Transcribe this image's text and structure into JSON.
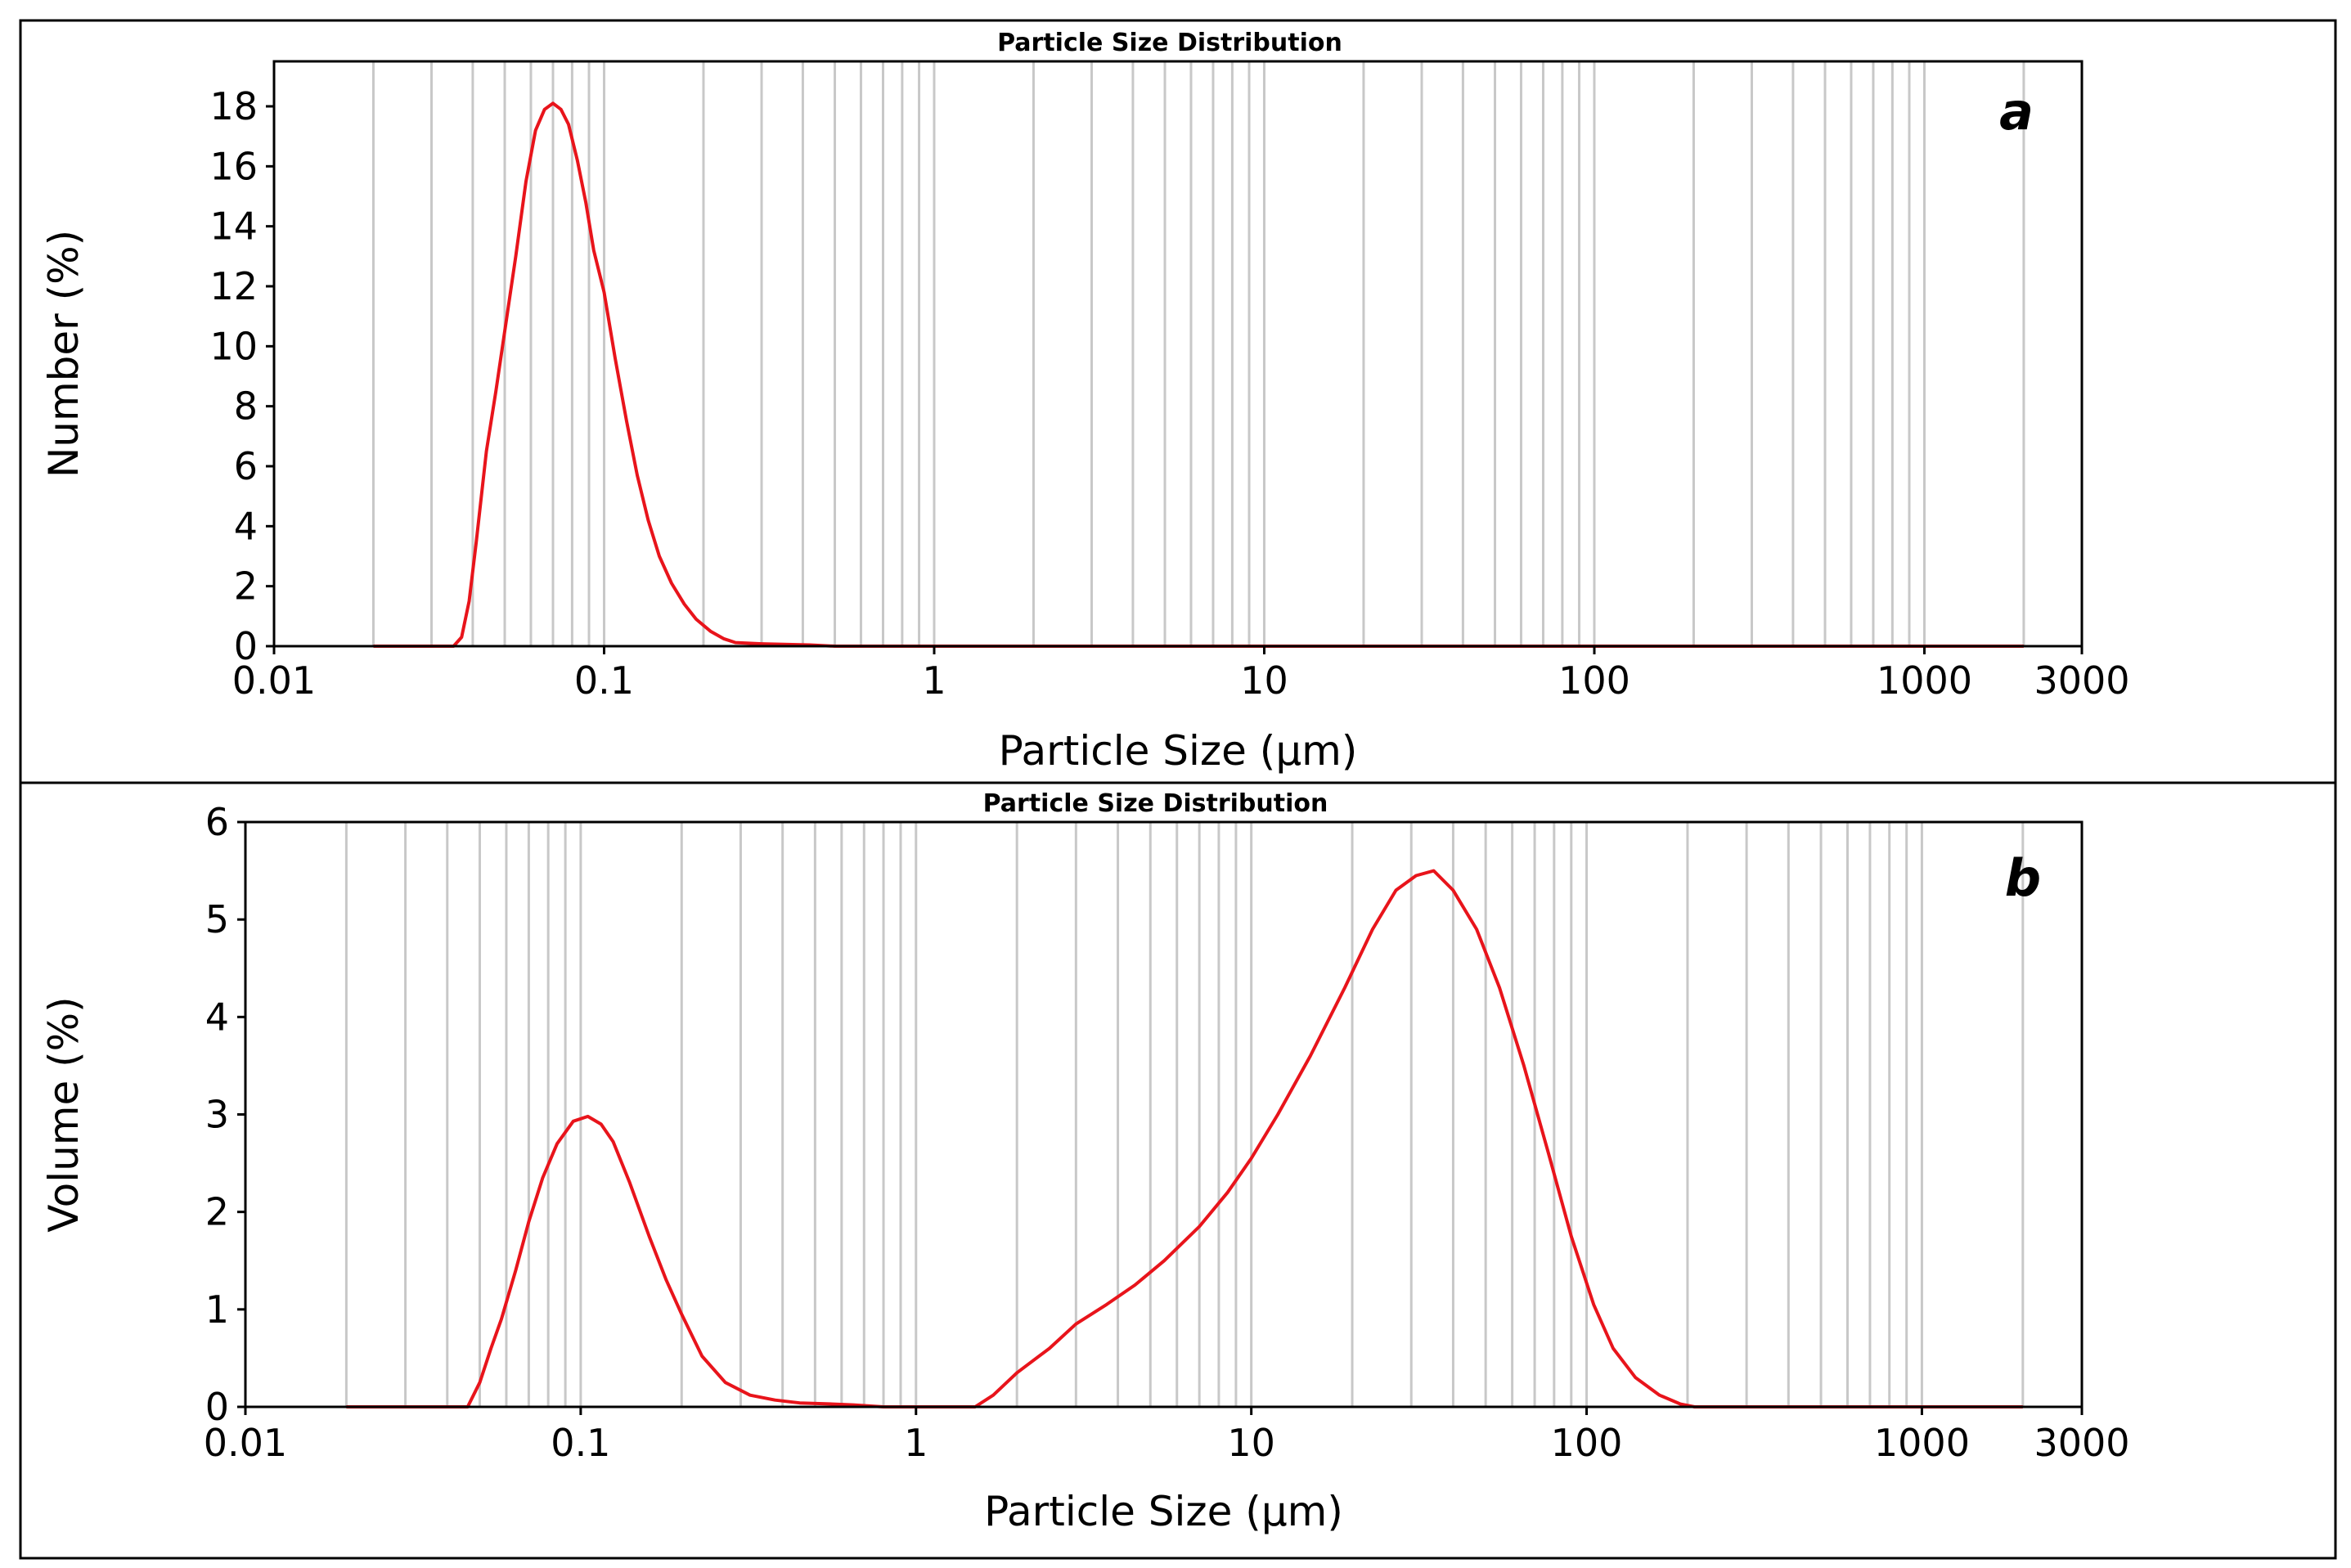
{
  "chart_data": [
    {
      "type": "line",
      "title": "Particle Size Distribution",
      "panel_label": "a",
      "xlabel": "Particle Size (µm)",
      "ylabel": "Number (%)",
      "x_scale": "log",
      "xlim": [
        0.01,
        3000
      ],
      "ylim": [
        0,
        19.5
      ],
      "x_ticks": [
        0.01,
        0.1,
        1,
        10,
        100,
        1000,
        3000
      ],
      "x_tick_labels": [
        "0.01",
        "0.1",
        "1",
        "10",
        "100",
        "1000",
        "3000"
      ],
      "y_ticks": [
        0,
        2,
        4,
        6,
        8,
        10,
        12,
        14,
        16,
        18
      ],
      "y_tick_labels": [
        "0",
        "2",
        "4",
        "6",
        "8",
        "10",
        "12",
        "14",
        "16",
        "18"
      ],
      "grid": true,
      "line_color": "#e8141b",
      "series": [
        {
          "x": [
            0.02,
            0.035,
            0.037,
            0.039,
            0.041,
            0.044,
            0.047,
            0.05,
            0.054,
            0.058,
            0.062,
            0.066,
            0.07,
            0.074,
            0.078,
            0.083,
            0.088,
            0.093,
            0.1,
            0.108,
            0.117,
            0.126,
            0.136,
            0.147,
            0.16,
            0.175,
            0.19,
            0.21,
            0.23,
            0.25,
            0.3,
            0.35,
            0.42,
            0.5,
            1,
            2000
          ],
          "y": [
            0,
            0,
            0.3,
            1.5,
            3.5,
            6.5,
            8.5,
            10.5,
            13,
            15.5,
            17.2,
            17.9,
            18.1,
            17.9,
            17.4,
            16.2,
            14.8,
            13.2,
            11.8,
            9.6,
            7.5,
            5.7,
            4.2,
            3.0,
            2.1,
            1.4,
            0.9,
            0.5,
            0.25,
            0.12,
            0.08,
            0.06,
            0.04,
            0,
            0,
            0
          ]
        }
      ]
    },
    {
      "type": "line",
      "title": "Particle Size Distribution",
      "panel_label": "b",
      "xlabel": "Particle Size (µm)",
      "ylabel": "Volume (%)",
      "x_scale": "log",
      "xlim": [
        0.01,
        3000
      ],
      "ylim": [
        0,
        6
      ],
      "x_ticks": [
        0.01,
        0.1,
        1,
        10,
        100,
        1000,
        3000
      ],
      "x_tick_labels": [
        "0.01",
        "0.1",
        "1",
        "10",
        "100",
        "1000",
        "3000"
      ],
      "y_ticks": [
        0,
        1,
        2,
        3,
        4,
        5,
        6
      ],
      "y_tick_labels": [
        "0",
        "1",
        "2",
        "3",
        "4",
        "5",
        "6"
      ],
      "grid": true,
      "line_color": "#e8141b",
      "series": [
        {
          "x": [
            0.02,
            0.046,
            0.05,
            0.054,
            0.058,
            0.064,
            0.07,
            0.077,
            0.085,
            0.095,
            0.105,
            0.115,
            0.125,
            0.14,
            0.16,
            0.18,
            0.2,
            0.23,
            0.27,
            0.32,
            0.38,
            0.45,
            0.55,
            0.65,
            0.8,
            1.0,
            1.3,
            1.5,
            1.7,
            2.0,
            2.5,
            3.0,
            3.7,
            4.5,
            5.5,
            7,
            8.5,
            10,
            12,
            15,
            19,
            23,
            27,
            31,
            35,
            40,
            47,
            55,
            65,
            77,
            90,
            105,
            120,
            140,
            165,
            190,
            210,
            300,
            2000
          ],
          "y": [
            0,
            0,
            0.25,
            0.6,
            0.9,
            1.4,
            1.9,
            2.35,
            2.7,
            2.93,
            2.98,
            2.9,
            2.72,
            2.3,
            1.75,
            1.3,
            0.95,
            0.52,
            0.25,
            0.12,
            0.07,
            0.04,
            0.03,
            0.02,
            0,
            0,
            0,
            0,
            0.12,
            0.35,
            0.6,
            0.85,
            1.05,
            1.25,
            1.5,
            1.85,
            2.2,
            2.55,
            3.0,
            3.6,
            4.3,
            4.9,
            5.3,
            5.45,
            5.5,
            5.3,
            4.9,
            4.3,
            3.5,
            2.6,
            1.75,
            1.05,
            0.6,
            0.3,
            0.12,
            0.03,
            0,
            0,
            0
          ]
        }
      ]
    }
  ]
}
